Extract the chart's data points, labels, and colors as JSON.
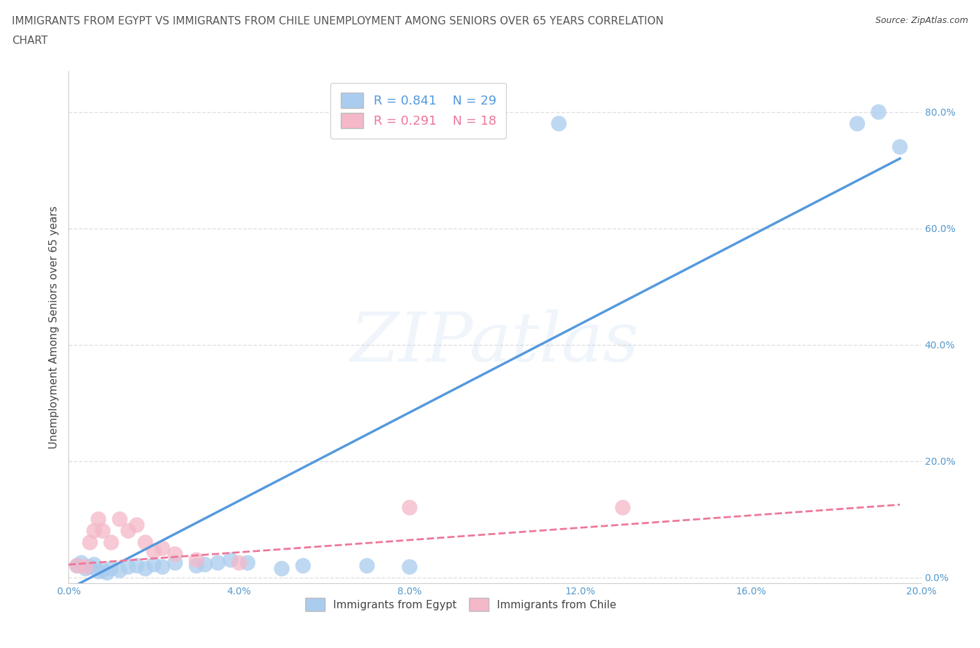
{
  "title_line1": "IMMIGRANTS FROM EGYPT VS IMMIGRANTS FROM CHILE UNEMPLOYMENT AMONG SENIORS OVER 65 YEARS CORRELATION",
  "title_line2": "CHART",
  "source_text": "Source: ZipAtlas.com",
  "ylabel": "Unemployment Among Seniors over 65 years",
  "background_color": "#ffffff",
  "watermark_text": "ZIPatlas",
  "egypt_color": "#aaccee",
  "chile_color": "#f4b8c8",
  "egypt_line_color": "#5599dd",
  "chile_line_color": "#ee7799",
  "legend_egypt_label": "Immigrants from Egypt",
  "legend_chile_label": "Immigrants from Chile",
  "R_egypt": "0.841",
  "N_egypt": "29",
  "R_chile": "0.291",
  "N_chile": "18",
  "xmin": 0.0,
  "xmax": 0.2,
  "ymin": -0.01,
  "ymax": 0.87,
  "yticks": [
    0.0,
    0.2,
    0.4,
    0.6,
    0.8
  ],
  "xticks": [
    0.0,
    0.04,
    0.08,
    0.12,
    0.16,
    0.2
  ],
  "egypt_x": [
    0.002,
    0.003,
    0.004,
    0.005,
    0.006,
    0.007,
    0.008,
    0.009,
    0.01,
    0.012,
    0.014,
    0.016,
    0.018,
    0.02,
    0.022,
    0.025,
    0.03,
    0.032,
    0.035,
    0.038,
    0.042,
    0.05,
    0.055,
    0.07,
    0.08,
    0.115,
    0.185,
    0.19,
    0.195
  ],
  "egypt_y": [
    0.02,
    0.025,
    0.015,
    0.018,
    0.022,
    0.01,
    0.012,
    0.008,
    0.015,
    0.012,
    0.018,
    0.02,
    0.015,
    0.022,
    0.018,
    0.025,
    0.02,
    0.022,
    0.025,
    0.03,
    0.025,
    0.015,
    0.02,
    0.02,
    0.018,
    0.78,
    0.78,
    0.8,
    0.74
  ],
  "chile_x": [
    0.002,
    0.004,
    0.005,
    0.006,
    0.007,
    0.008,
    0.01,
    0.012,
    0.014,
    0.016,
    0.018,
    0.02,
    0.022,
    0.025,
    0.03,
    0.04,
    0.08,
    0.13
  ],
  "chile_y": [
    0.02,
    0.018,
    0.06,
    0.08,
    0.1,
    0.08,
    0.06,
    0.1,
    0.08,
    0.09,
    0.06,
    0.045,
    0.05,
    0.04,
    0.03,
    0.025,
    0.12,
    0.12
  ],
  "egypt_line_x0": 0.0,
  "egypt_line_x1": 0.195,
  "egypt_line_y0": -0.02,
  "egypt_line_y1": 0.72,
  "chile_line_x0": 0.0,
  "chile_line_x1": 0.195,
  "chile_line_y0": 0.022,
  "chile_line_y1": 0.125,
  "title_fontsize": 11,
  "source_fontsize": 9,
  "axis_label_fontsize": 11,
  "tick_label_fontsize": 10,
  "legend_fontsize": 13,
  "text_color": "#444444",
  "tick_color": "#5599cc",
  "grid_color": "#e0e0e0",
  "title_color": "#555555"
}
